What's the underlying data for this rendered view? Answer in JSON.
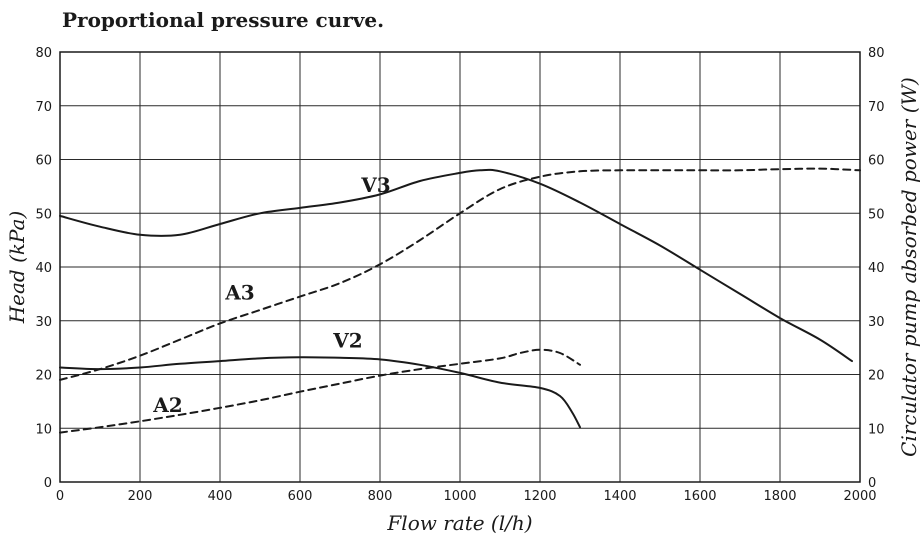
{
  "title": "Proportional pressure curve.",
  "chart_data": {
    "type": "line",
    "title": "Proportional pressure curve.",
    "xlabel": "Flow rate (l/h)",
    "ylabel": "Head (kPa)",
    "y2label": "Circulator pump absorbed power (W)",
    "xlim": [
      0,
      2000
    ],
    "ylim": [
      0,
      80
    ],
    "y2lim": [
      0,
      80
    ],
    "xticks": [
      0,
      200,
      400,
      600,
      800,
      1000,
      1200,
      1400,
      1600,
      1800,
      2000
    ],
    "yticks": [
      0,
      10,
      20,
      30,
      40,
      50,
      60,
      70,
      80
    ],
    "y2ticks": [
      0,
      10,
      20,
      30,
      40,
      50,
      60,
      70,
      80
    ],
    "grid": true,
    "series": [
      {
        "name": "V3",
        "axis": "left",
        "style": "solid",
        "x": [
          0,
          100,
          200,
          300,
          400,
          500,
          600,
          700,
          800,
          900,
          1000,
          1050,
          1100,
          1200,
          1300,
          1400,
          1500,
          1600,
          1700,
          1800,
          1900,
          1980
        ],
        "y": [
          49.5,
          47.5,
          46,
          46,
          48,
          50,
          51,
          52,
          53.5,
          56,
          57.5,
          58,
          57.8,
          55.5,
          52,
          48,
          44,
          39.5,
          35,
          30.5,
          26.5,
          22.5
        ]
      },
      {
        "name": "A3",
        "axis": "right",
        "style": "dashed",
        "x": [
          0,
          100,
          200,
          300,
          400,
          500,
          600,
          700,
          800,
          900,
          1000,
          1100,
          1200,
          1300,
          1400,
          1500,
          1600,
          1700,
          1800,
          1900,
          2000
        ],
        "y": [
          19,
          21,
          23.5,
          26.5,
          29.5,
          32,
          34.5,
          37,
          40.5,
          45,
          50,
          54.5,
          56.8,
          57.8,
          58,
          58,
          58,
          58,
          58.2,
          58.3,
          58
        ]
      },
      {
        "name": "V2",
        "axis": "left",
        "style": "solid",
        "x": [
          0,
          100,
          200,
          300,
          400,
          500,
          600,
          700,
          800,
          900,
          1000,
          1100,
          1200,
          1250,
          1280,
          1300
        ],
        "y": [
          21.3,
          21,
          21.3,
          22,
          22.5,
          23,
          23.2,
          23.1,
          22.8,
          21.8,
          20.3,
          18.5,
          17.5,
          16,
          13,
          10.2
        ]
      },
      {
        "name": "A2",
        "axis": "right",
        "style": "dashed",
        "x": [
          0,
          100,
          200,
          300,
          400,
          500,
          600,
          700,
          800,
          900,
          1000,
          1100,
          1150,
          1200,
          1250,
          1300
        ],
        "y": [
          9.2,
          10.2,
          11.3,
          12.5,
          13.8,
          15.2,
          16.8,
          18.3,
          19.8,
          21,
          22,
          23,
          24,
          24.6,
          24,
          21.8
        ]
      }
    ],
    "series_labels": [
      {
        "text": "V3",
        "x": 790,
        "y": 54
      },
      {
        "text": "A3",
        "x": 450,
        "y": 34
      },
      {
        "text": "V2",
        "x": 720,
        "y": 25
      },
      {
        "text": "A2",
        "x": 270,
        "y": 13
      }
    ]
  }
}
